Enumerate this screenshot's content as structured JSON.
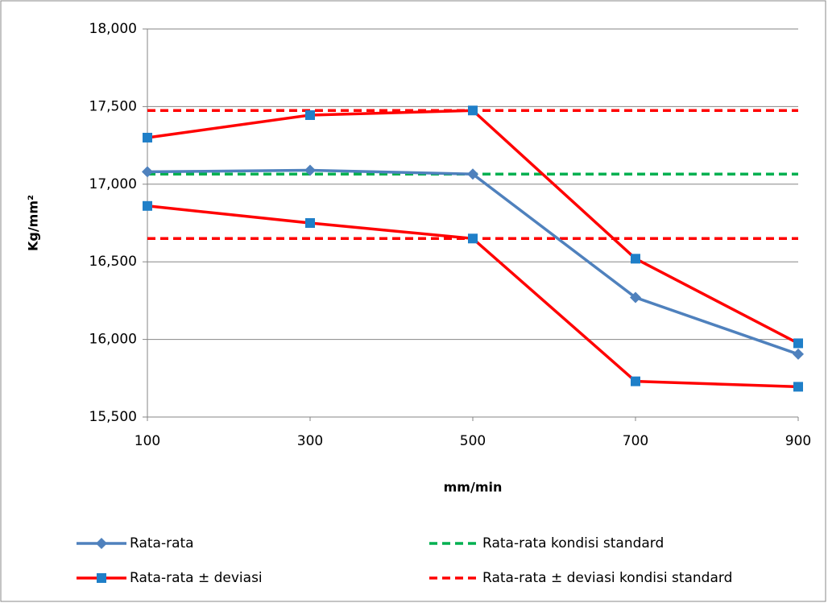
{
  "chart_data": {
    "type": "line",
    "x_label": "mm/min",
    "y_label": "Kg/mm²",
    "x": [
      100,
      300,
      500,
      700,
      900
    ],
    "xlim": [
      100,
      900
    ],
    "xticks": [
      100,
      300,
      500,
      700,
      900
    ],
    "ylim": [
      15500,
      18000
    ],
    "yticks": [
      {
        "value": 15500,
        "label": "15,500"
      },
      {
        "value": 16000,
        "label": "16,000"
      },
      {
        "value": 16500,
        "label": "16,500"
      },
      {
        "value": 17000,
        "label": "17,000"
      },
      {
        "value": 17500,
        "label": "17,500"
      },
      {
        "value": 18000,
        "label": "18,000"
      }
    ],
    "grid": true,
    "series": [
      {
        "name": "Rata-rata",
        "color": "#4f81bd",
        "marker": "diamond",
        "values": [
          17080,
          17090,
          17065,
          16270,
          15905
        ]
      },
      {
        "name": "Rata-rata ± deviasi",
        "color": "#ff0000",
        "marker": "square",
        "values": [
          17300,
          17445,
          17475,
          16520,
          15975
        ],
        "values_lower": [
          16860,
          16750,
          16650,
          15730,
          15695
        ]
      }
    ],
    "reference_lines": [
      {
        "name": "Rata-rata kondisi standard",
        "color": "#00b050",
        "values": [
          17065
        ]
      },
      {
        "name": "Rata-rata ± deviasi kondisi standard",
        "color": "#ff0000",
        "values": [
          17475,
          16650
        ]
      }
    ],
    "legend": "bottom"
  }
}
